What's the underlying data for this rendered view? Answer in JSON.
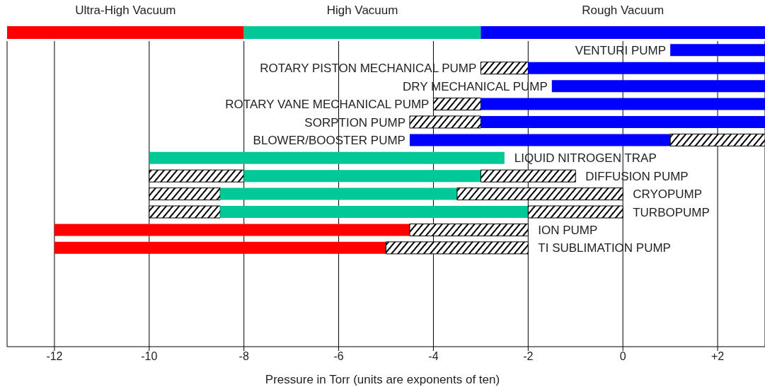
{
  "chart_data": [
    {
      "type": "bar",
      "orientation": "horizontal",
      "categories": [
        null
      ],
      "series": [
        {
          "name": "Ultra-High Vacuum",
          "color": "#ff0000",
          "base": [
            -13
          ],
          "values": [
            5
          ]
        },
        {
          "name": "High Vacuum",
          "color": "#00c896",
          "base": [
            -8
          ],
          "values": [
            5
          ]
        },
        {
          "name": "Rough Vacuum",
          "color": "#0000ff",
          "base": [
            -3
          ],
          "values": [
            6
          ]
        }
      ],
      "xlim": [
        -13,
        3
      ],
      "tick_labels": false
    },
    {
      "type": "bar",
      "orientation": "horizontal",
      "xlabel": "Pressure in Torr (units are exponents of ten)",
      "categories": [
        "VENTURI PUMP",
        "ROTARY PISTON MECHANICAL PUMP",
        "DRY MECHANICAL PUMP",
        "ROTARY VANE MECHANICAL PUMP",
        "SORPTION PUMP",
        "BLOWER/BOOSTER PUMP",
        "LIQUID NITROGEN TRAP",
        "DIFFUSION PUMP",
        "CRYOPUMP",
        "TURBOPUMP",
        "ION PUMP",
        "TI SUBLIMATION PUMP",
        null,
        null,
        null,
        null,
        null
      ],
      "series": [
        {
          "color": "#000000",
          "base": [
            null,
            -3,
            null,
            -4,
            -4.5,
            null,
            null,
            -10,
            -10,
            -10,
            null,
            null,
            null,
            null,
            null,
            null,
            null
          ],
          "values": [
            null,
            1,
            null,
            1,
            1.5,
            null,
            null,
            2,
            1.5,
            1.5,
            null,
            null,
            null,
            null,
            null,
            null,
            null
          ]
        },
        {
          "colors": [
            "#0000ff",
            "#0000ff",
            "#0000ff",
            "#0000ff",
            "#0000ff",
            "#0000ff",
            "#00c896",
            "#00c896",
            "#00c896",
            "#00c896",
            "#ff0000",
            "#ff0000",
            null,
            null,
            null,
            null,
            null
          ],
          "base": [
            1,
            -2,
            -1.5,
            -3,
            -3,
            -4.5,
            -10,
            -8,
            -8.5,
            -8.5,
            -12,
            -12,
            null,
            null,
            null,
            null,
            null
          ],
          "values": [
            2,
            5,
            4.5,
            6,
            6,
            5.5,
            7.5,
            5,
            5,
            6.5,
            7.5,
            7,
            null,
            null,
            null,
            null,
            null
          ]
        },
        {
          "color": "#000000",
          "base": [
            null,
            null,
            null,
            null,
            null,
            1,
            null,
            -3,
            -3.5,
            -2,
            -4.5,
            -5,
            null,
            null,
            null,
            null,
            null
          ],
          "values": [
            null,
            null,
            null,
            null,
            null,
            2,
            null,
            2,
            3.5,
            2,
            2.5,
            3,
            null,
            null,
            null,
            null,
            null
          ]
        }
      ],
      "xlim": [
        -13,
        3
      ],
      "xticks": [
        -12,
        -10,
        -8,
        -6,
        -4,
        -2,
        0,
        {
          "value": 2,
          "label": "+2"
        }
      ],
      "grid": "x"
    }
  ]
}
